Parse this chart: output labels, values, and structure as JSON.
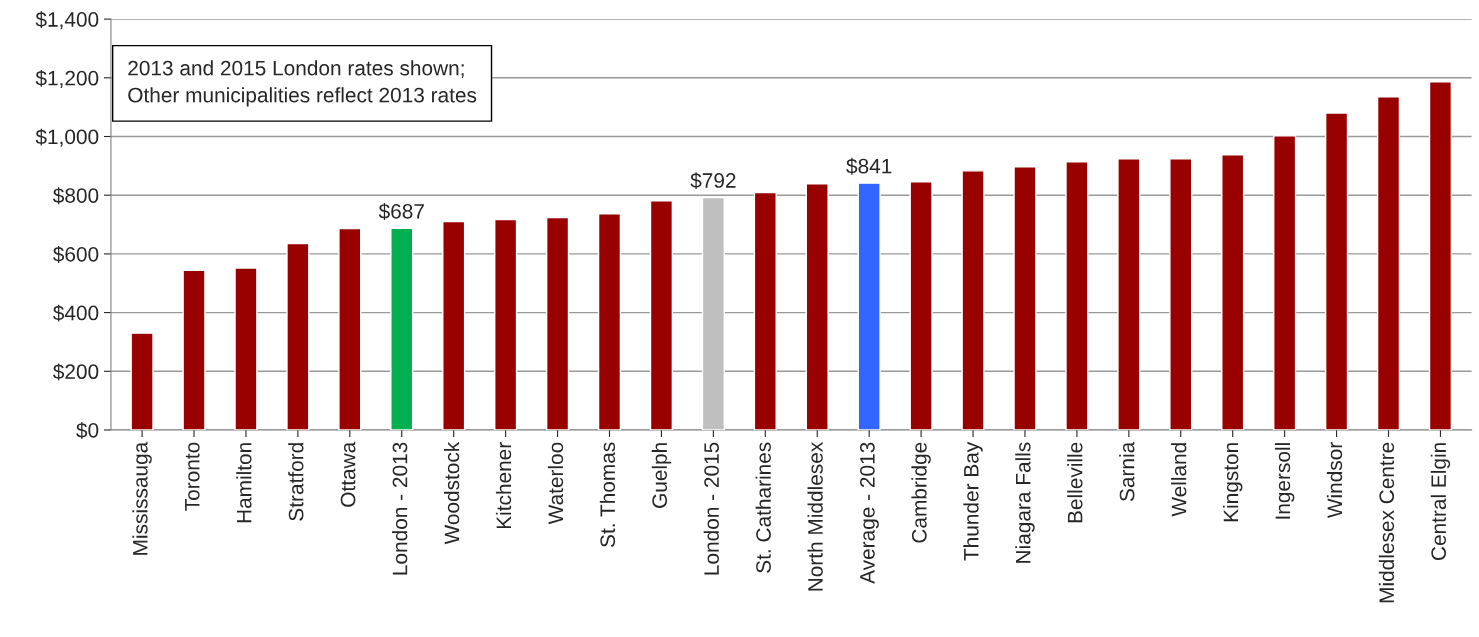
{
  "chart_data": {
    "type": "bar",
    "categories": [
      "Mississauga",
      "Toronto",
      "Hamilton",
      "Stratford",
      "Ottawa",
      "London - 2013",
      "Woodstock",
      "Kitchener",
      "Waterloo",
      "St. Thomas",
      "Guelph",
      "London - 2015",
      "St. Catharines",
      "North Middlesex",
      "Average - 2013",
      "Cambridge",
      "Thunder Bay",
      "Niagara Falls",
      "Belleville",
      "Sarnia",
      "Welland",
      "Kingston",
      "Ingersoll",
      "Windsor",
      "Middlesex Centre",
      "Central Elgin"
    ],
    "values": [
      330,
      544,
      552,
      635,
      686,
      687,
      710,
      717,
      724,
      737,
      781,
      792,
      809,
      839,
      841,
      846,
      883,
      897,
      914,
      924,
      924,
      938,
      1002,
      1080,
      1135,
      1186
    ],
    "colors": [
      "#990000",
      "#990000",
      "#990000",
      "#990000",
      "#990000",
      "#00b050",
      "#990000",
      "#990000",
      "#990000",
      "#990000",
      "#990000",
      "#bfbfbf",
      "#990000",
      "#990000",
      "#3366ff",
      "#990000",
      "#990000",
      "#990000",
      "#990000",
      "#990000",
      "#990000",
      "#990000",
      "#990000",
      "#990000",
      "#990000",
      "#990000"
    ],
    "value_labels": [
      null,
      null,
      null,
      null,
      null,
      "$687",
      null,
      null,
      null,
      null,
      null,
      "$792",
      null,
      null,
      "$841",
      null,
      null,
      null,
      null,
      null,
      null,
      null,
      null,
      null,
      null,
      null
    ],
    "ylim": [
      0,
      1400
    ],
    "yticks": [
      {
        "value": 0,
        "label": "$0"
      },
      {
        "value": 200,
        "label": "$200"
      },
      {
        "value": 400,
        "label": "$400"
      },
      {
        "value": 600,
        "label": "$600"
      },
      {
        "value": 800,
        "label": "$800"
      },
      {
        "value": 1000,
        "label": "$1,000"
      },
      {
        "value": 1200,
        "label": "$1,200"
      },
      {
        "value": 1400,
        "label": "$1,400"
      }
    ],
    "grid": "y",
    "annotations": [
      "2013 and 2015 London rates shown;\nOther municipalities reflect 2013 rates"
    ]
  }
}
